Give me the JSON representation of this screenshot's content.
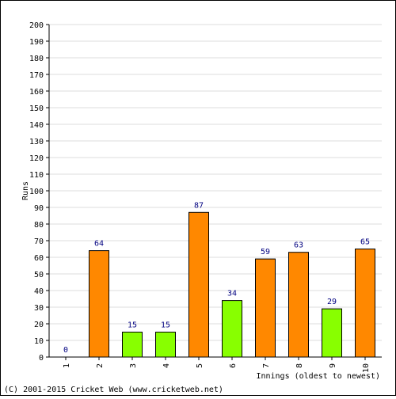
{
  "chart_data": {
    "type": "bar",
    "title": "",
    "xlabel": "Innings (oldest to newest)",
    "ylabel": "Runs",
    "ylim": [
      0,
      200
    ],
    "yticks": [
      0,
      10,
      20,
      30,
      40,
      50,
      60,
      70,
      80,
      90,
      100,
      110,
      120,
      130,
      140,
      150,
      160,
      170,
      180,
      190,
      200
    ],
    "categories": [
      "1",
      "2",
      "3",
      "4",
      "5",
      "6",
      "7",
      "8",
      "9",
      "10"
    ],
    "values": [
      0,
      64,
      15,
      15,
      87,
      34,
      59,
      63,
      29,
      65
    ],
    "bar_colors": [
      "#ff8800",
      "#ff8800",
      "#88ff00",
      "#88ff00",
      "#ff8800",
      "#88ff00",
      "#ff8800",
      "#ff8800",
      "#88ff00",
      "#ff8800"
    ],
    "grid": true,
    "legend": "none"
  },
  "footer": {
    "copyright": "(C) 2001-2015 Cricket Web (www.cricketweb.net)"
  },
  "colors": {
    "grid": "#dcdcdc",
    "value_label": "#000080",
    "bar_outline": "#000000"
  }
}
